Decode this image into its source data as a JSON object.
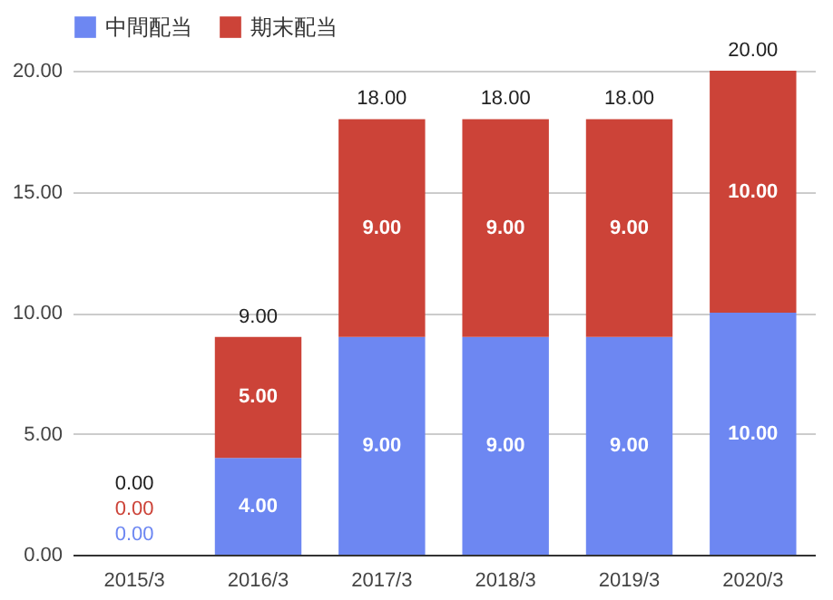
{
  "chart_data": {
    "type": "bar",
    "stacked": true,
    "categories": [
      "2015/3",
      "2016/3",
      "2017/3",
      "2018/3",
      "2019/3",
      "2020/3"
    ],
    "series": [
      {
        "name": "中間配当",
        "color": "#6d87f2",
        "values": [
          0,
          4,
          9,
          9,
          9,
          10
        ],
        "value_labels": [
          "0.00",
          "4.00",
          "9.00",
          "9.00",
          "9.00",
          "10.00"
        ]
      },
      {
        "name": "期末配当",
        "color": "#cc4338",
        "values": [
          0,
          5,
          9,
          9,
          9,
          10
        ],
        "value_labels": [
          "0.00",
          "5.00",
          "9.00",
          "9.00",
          "9.00",
          "10.00"
        ]
      }
    ],
    "totals": [
      "0.00",
      "9.00",
      "18.00",
      "18.00",
      "18.00",
      "20.00"
    ],
    "ylim": [
      0,
      20
    ],
    "yticks": [
      {
        "value": 0,
        "label": "0.00"
      },
      {
        "value": 5,
        "label": "5.00"
      },
      {
        "value": 10,
        "label": "10.00"
      },
      {
        "value": 15,
        "label": "15.00"
      },
      {
        "value": 20,
        "label": "20.00"
      }
    ],
    "grid": "y",
    "legend": "top"
  }
}
